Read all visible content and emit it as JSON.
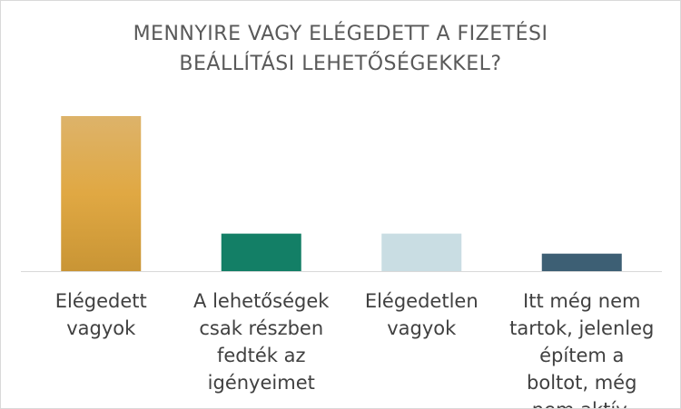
{
  "chart_data": {
    "type": "bar",
    "title": [
      "MENNYIRE VAGY ELÉGEDETT A FIZETÉSI",
      "BEÁLLÍTÁSI LEHETŐSÉGEKKEL?"
    ],
    "categories": [
      "Elégedett vagyok",
      "A lehetőségek csak részben fedték az igényeimet",
      "Elégedetlen vagyok",
      "Itt még nem tartok, jelenleg építem a boltot, még nem aktív."
    ],
    "values": [
      62,
      15,
      15,
      7
    ],
    "colors": [
      "#d9a648",
      "#137f66",
      "#c9dde3",
      "#3d5f74"
    ],
    "ylim": [
      0,
      62
    ]
  }
}
